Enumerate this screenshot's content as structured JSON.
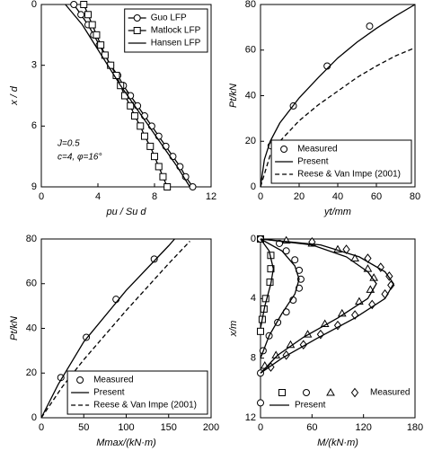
{
  "chart_data": [
    {
      "type": "line",
      "xlabel": "pu / Su d",
      "ylabel": "x / d",
      "xlim": [
        0,
        12
      ],
      "xticks": [
        0,
        4,
        8,
        12
      ],
      "ylim": [
        0,
        9
      ],
      "yticks": [
        0,
        3,
        6,
        9
      ],
      "y_inverted": true,
      "legend": "upper right",
      "annotations": [
        "J=0.5",
        "c=4, φ=16°"
      ],
      "series": [
        {
          "name": "Guo LFP",
          "color": "#000000",
          "marker": "circle",
          "line": "solid",
          "x": [
            2.3,
            2.8,
            3.3,
            3.7,
            4.1,
            4.5,
            4.9,
            5.4,
            5.8,
            6.3,
            6.8,
            7.3,
            7.8,
            8.3,
            8.8,
            9.3,
            9.8,
            10.2,
            10.7
          ],
          "values": [
            0,
            0.5,
            1,
            1.5,
            2,
            2.5,
            3,
            3.5,
            4,
            4.5,
            5,
            5.5,
            6,
            6.5,
            7,
            7.5,
            8,
            8.5,
            9
          ]
        },
        {
          "name": "Matlock LFP",
          "color": "#000000",
          "marker": "square",
          "line": "solid",
          "x": [
            3.0,
            3.3,
            3.6,
            3.9,
            4.2,
            4.5,
            4.9,
            5.3,
            5.6,
            5.9,
            6.3,
            6.6,
            7.0,
            7.3,
            7.7,
            8.0,
            8.3,
            8.6,
            8.9
          ],
          "values": [
            0,
            0.5,
            1,
            1.5,
            2,
            2.5,
            3,
            3.5,
            4,
            4.5,
            5,
            5.5,
            6,
            6.5,
            7,
            7.5,
            8,
            8.5,
            9
          ]
        },
        {
          "name": "Hansen LFP",
          "color": "#000000",
          "line": "solid",
          "x": [
            1.7,
            2.9,
            3.8,
            4.7,
            5.6,
            6.6,
            7.6,
            8.6,
            9.6,
            10.5
          ],
          "values": [
            0,
            1,
            2,
            3,
            4,
            5,
            6,
            7,
            8,
            9
          ]
        }
      ]
    },
    {
      "type": "line",
      "xlabel": "yt/mm",
      "ylabel": "Pt/kN",
      "xlim": [
        0,
        80
      ],
      "xticks": [
        0,
        20,
        40,
        60,
        80
      ],
      "ylim": [
        0,
        80
      ],
      "yticks": [
        0,
        20,
        40,
        60,
        80
      ],
      "legend": "lower right",
      "series": [
        {
          "name": "Measured",
          "color": "#000000",
          "marker": "circle",
          "x": [
            5.5,
            17,
            34.5,
            56.5
          ],
          "values": [
            18,
            35.5,
            53,
            70.5
          ]
        },
        {
          "name": "Present",
          "color": "#000000",
          "line": "solid",
          "x": [
            0,
            2,
            5,
            10,
            20,
            30,
            40,
            50,
            60,
            70,
            80
          ],
          "values": [
            0,
            12,
            20,
            28,
            39,
            48,
            56.5,
            63.5,
            69.5,
            75,
            80
          ]
        },
        {
          "name": "Reese & Van Impe (2001)",
          "color": "#000000",
          "line": "dashed",
          "x": [
            0,
            5,
            10,
            20,
            30,
            40,
            50,
            60,
            70,
            80
          ],
          "values": [
            0,
            14,
            20,
            29,
            36,
            42,
            48,
            53,
            57.5,
            61
          ]
        }
      ]
    },
    {
      "type": "line",
      "xlabel": "Mmax/(kN·m)",
      "ylabel": "Pt/kN",
      "xlim": [
        0,
        200
      ],
      "xticks": [
        0,
        50,
        100,
        150,
        200
      ],
      "ylim": [
        0,
        80
      ],
      "yticks": [
        0,
        20,
        40,
        60,
        80
      ],
      "legend": "lower right",
      "series": [
        {
          "name": "Measured",
          "color": "#000000",
          "marker": "circle",
          "x": [
            23,
            53,
            88,
            133
          ],
          "values": [
            18,
            36,
            53,
            71
          ]
        },
        {
          "name": "Present",
          "color": "#000000",
          "line": "solid",
          "x": [
            0,
            20,
            50,
            100,
            150,
            157
          ],
          "values": [
            0,
            15,
            34,
            57,
            77,
            80
          ]
        },
        {
          "name": "Reese & Van Impe (2001)",
          "color": "#000000",
          "line": "dashed",
          "x": [
            0,
            25,
            50,
            100,
            150,
            175
          ],
          "values": [
            0,
            14,
            26,
            48,
            69,
            79
          ]
        }
      ]
    },
    {
      "type": "line",
      "xlabel": "M/(kN·m)",
      "ylabel": "x/m",
      "xlim": [
        0,
        180
      ],
      "xticks": [
        0,
        60,
        120,
        180
      ],
      "ylim": [
        0,
        12
      ],
      "yticks": [
        0,
        4,
        8,
        12
      ],
      "y_inverted": true,
      "legend_labels": [
        "Measured",
        "Present"
      ],
      "series": [
        {
          "color": "#000000",
          "marker": "square",
          "x": [
            0,
            12,
            12,
            11,
            6,
            4,
            2,
            0
          ],
          "values": [
            0,
            1.1,
            2.0,
            2.9,
            4.0,
            4.7,
            5.4,
            6.2
          ]
        },
        {
          "color": "#000000",
          "marker": "circle",
          "x": [
            0,
            22,
            30,
            40,
            45,
            47,
            45,
            38,
            30,
            20,
            10,
            3,
            0,
            0
          ],
          "values": [
            0,
            0.3,
            0.8,
            1.4,
            2.1,
            2.7,
            3.3,
            4.1,
            4.9,
            5.6,
            6.5,
            7.5,
            9,
            11
          ]
        },
        {
          "color": "#000000",
          "marker": "triangle",
          "x": [
            30,
            60,
            90,
            110,
            125,
            132,
            128,
            115,
            95,
            75,
            55,
            35,
            18,
            5
          ],
          "values": [
            0.1,
            0.3,
            0.7,
            1.3,
            2,
            2.6,
            3.4,
            4.2,
            5,
            5.7,
            6.4,
            7.1,
            7.8,
            8.5
          ]
        },
        {
          "color": "#000000",
          "marker": "diamond",
          "x": [
            60,
            100,
            125,
            140,
            150,
            152,
            145,
            130,
            110,
            90,
            70,
            50,
            30,
            12
          ],
          "values": [
            0.2,
            0.7,
            1.3,
            1.9,
            2.5,
            3.1,
            3.7,
            4.4,
            5.1,
            5.8,
            6.4,
            7.1,
            7.8,
            8.6
          ]
        },
        {
          "color": "#000000",
          "line": "solid",
          "x": [
            0,
            10,
            15,
            12,
            5,
            0
          ],
          "values": [
            0,
            0.8,
            2,
            3,
            4.5,
            6
          ]
        },
        {
          "color": "#000000",
          "line": "solid",
          "x": [
            0,
            25,
            40,
            45,
            40,
            25,
            10,
            0
          ],
          "values": [
            0,
            0.8,
            1.8,
            2.7,
            3.7,
            5,
            6.5,
            8
          ]
        },
        {
          "color": "#000000",
          "line": "solid",
          "x": [
            0,
            60,
            100,
            125,
            135,
            125,
            90,
            50,
            20,
            0
          ],
          "values": [
            0,
            0.4,
            1.2,
            2.2,
            3,
            4,
            5.3,
            6.6,
            7.8,
            9
          ]
        },
        {
          "color": "#000000",
          "line": "solid",
          "x": [
            0,
            70,
            115,
            145,
            155,
            145,
            110,
            65,
            25,
            0
          ],
          "values": [
            0,
            0.4,
            1.2,
            2.2,
            3,
            4,
            5.3,
            6.7,
            8,
            9
          ]
        }
      ]
    }
  ]
}
